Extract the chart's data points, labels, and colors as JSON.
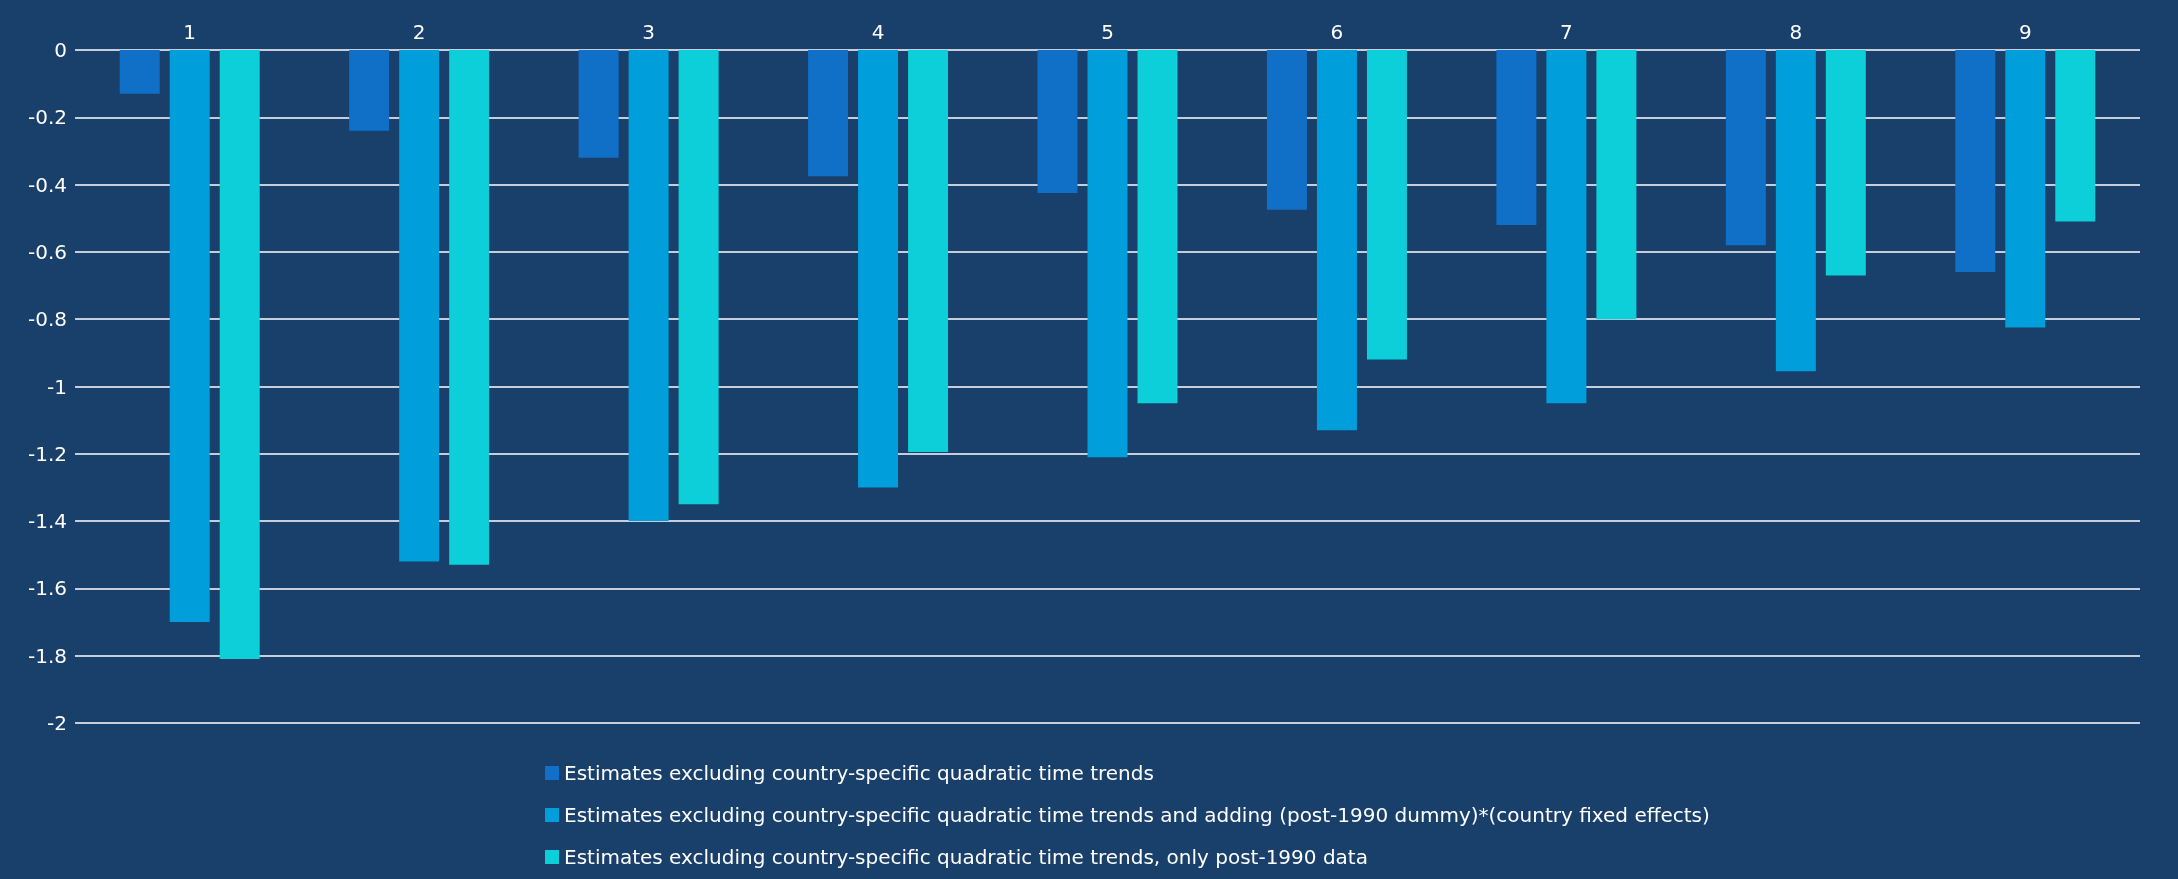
{
  "chart_data": {
    "type": "bar",
    "categories": [
      "1",
      "2",
      "3",
      "4",
      "5",
      "6",
      "7",
      "8",
      "9"
    ],
    "series": [
      {
        "name": "Estimates excluding country-specific quadratic time trends",
        "color": "#1070c8",
        "values": [
          -0.13,
          -0.24,
          -0.32,
          -0.375,
          -0.425,
          -0.475,
          -0.52,
          -0.58,
          -0.66
        ]
      },
      {
        "name": "Estimates excluding country-specific quadratic time trends and adding (post-1990 dummy)*(country fixed effects)",
        "color": "#009fdb",
        "values": [
          -1.7,
          -1.52,
          -1.4,
          -1.3,
          -1.21,
          -1.13,
          -1.05,
          -0.955,
          -0.825
        ]
      },
      {
        "name": "Estimates excluding country-specific quadratic time trends, only post-1990 data",
        "color": "#0ccfd9",
        "values": [
          -1.81,
          -1.53,
          -1.35,
          -1.195,
          -1.05,
          -0.92,
          -0.8,
          -0.67,
          -0.51
        ]
      }
    ],
    "ylim": [
      -2,
      0
    ],
    "yticks": [
      -2,
      -1.8,
      -1.6,
      -1.4,
      -1.2,
      -1,
      -0.8,
      -0.6,
      -0.4,
      -0.2,
      0
    ],
    "grid": "y",
    "legend": "bottom"
  }
}
